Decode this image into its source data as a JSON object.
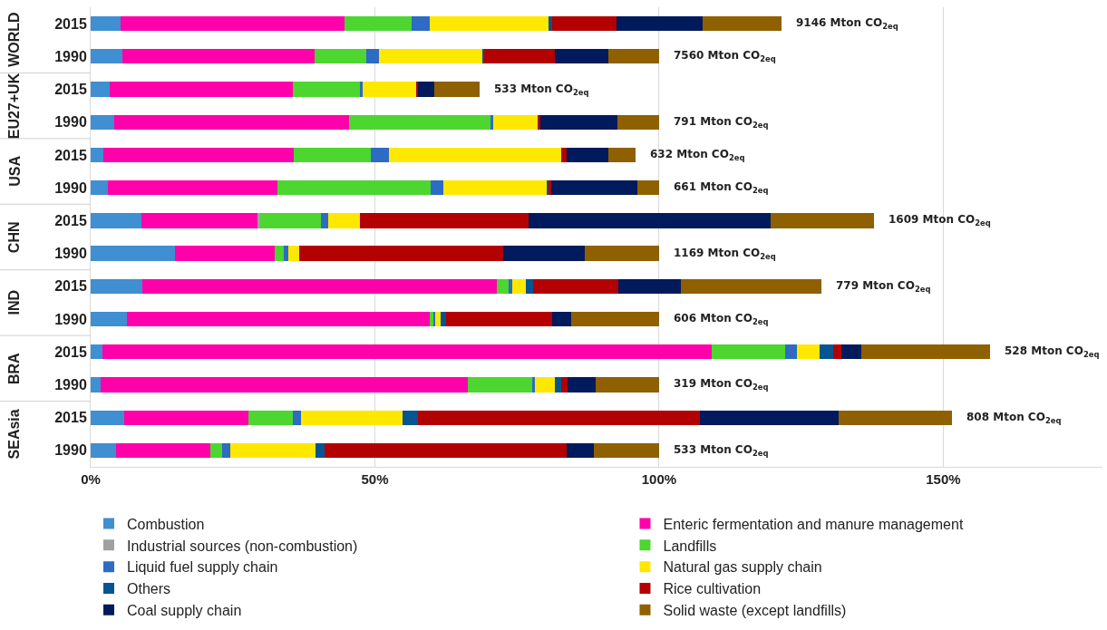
{
  "chart_data": {
    "type": "bar",
    "orientation": "horizontal",
    "stacked": true,
    "categories": [
      "2015",
      "1990",
      "2015",
      "1990",
      "2015",
      "1990",
      "2015",
      "1990",
      "2015",
      "1990",
      "2015",
      "1990",
      "2015",
      "1990"
    ],
    "annotations": [
      "WORLD",
      "EU27+UK",
      "USA",
      "CHN",
      "IND",
      "BRA",
      "SEAsia"
    ],
    "series": [
      {
        "name": "Combustion",
        "color": "#3f8fd2",
        "values": [
          5.2,
          5.6,
          3.4,
          4.1,
          2.2,
          3.0,
          8.9,
          14.9,
          9.1,
          6.4,
          2.1,
          1.7,
          5.9,
          4.4
        ]
      },
      {
        "name": "Enteric fermentation and manure management",
        "color": "#ff00aa",
        "values": [
          39.4,
          33.8,
          32.1,
          41.4,
          33.6,
          29.8,
          20.4,
          17.4,
          62.3,
          53.2,
          107.2,
          64.6,
          21.8,
          16.6
        ]
      },
      {
        "name": "Industrial sources (non-combustion)",
        "color": "#a0a0a0",
        "values": [
          0,
          0,
          0,
          0,
          0,
          0,
          0.5,
          0,
          0,
          0,
          0,
          0,
          0,
          0
        ]
      },
      {
        "name": "Landfills",
        "color": "#4cd62f",
        "values": [
          11.9,
          9.1,
          12.0,
          24.9,
          13.5,
          27.0,
          10.7,
          1.7,
          2.2,
          0.7,
          12.8,
          11.3,
          7.9,
          2.2
        ]
      },
      {
        "name": "Liquid fuel supply chain",
        "color": "#2d6bc4",
        "values": [
          3.2,
          2.2,
          0.3,
          0.4,
          3.2,
          2.2,
          1.3,
          0.8,
          0.6,
          0.3,
          2.2,
          0.6,
          1.4,
          1.3
        ]
      },
      {
        "name": "Natural gas supply chain",
        "color": "#ffe800",
        "values": [
          20.9,
          18.3,
          9.5,
          7.8,
          30.2,
          18.3,
          5.6,
          1.9,
          2.3,
          0.9,
          4.0,
          3.5,
          17.9,
          15.1
        ]
      },
      {
        "name": "Others",
        "color": "#045592",
        "values": [
          0.6,
          0.3,
          0,
          0,
          0,
          0.3,
          0,
          0,
          1.3,
          1.0,
          2.4,
          1.0,
          2.7,
          1.6
        ]
      },
      {
        "name": "Rice cultivation",
        "color": "#b30000",
        "values": [
          11.3,
          12.3,
          0.3,
          0.5,
          1.1,
          0.5,
          29.7,
          35.8,
          15.0,
          18.7,
          1.4,
          1.2,
          49.6,
          42.6
        ]
      },
      {
        "name": "Coal supply chain",
        "color": "#001a5c",
        "values": [
          15.1,
          9.4,
          2.9,
          13.6,
          7.3,
          15.1,
          42.6,
          14.5,
          11.0,
          3.4,
          3.5,
          5.0,
          24.4,
          4.8
        ]
      },
      {
        "name": "Solid waste (except landfills)",
        "color": "#8f6000",
        "values": [
          14.0,
          9.0,
          7.9,
          7.3,
          4.8,
          3.8,
          18.1,
          13.0,
          24.8,
          15.4,
          22.6,
          11.1,
          19.9,
          11.4
        ]
      }
    ],
    "totals": [
      "9146 Mton CO$_{2eq}$",
      "7560 Mton CO$_{2eq}$",
      "533 Mton CO$_{2eq}$",
      "791 Mton CO$_{2eq}$",
      "632 Mton CO$_{2eq}$",
      "661 Mton CO$_{2eq}$",
      "1609 Mton CO$_{2eq}$",
      "1169 Mton CO$_{2eq}$",
      "779 Mton CO$_{2eq}$",
      "606 Mton CO$_{2eq}$",
      "528 Mton CO$_{2eq}$",
      "319 Mton CO$_{2eq}$",
      "808 Mton CO$_{2eq}$",
      "533 Mton CO$_{2eq}$"
    ],
    "xlim": [
      0,
      178
    ],
    "xticks": [
      {
        "value": 0,
        "label": "0%"
      },
      {
        "value": 50,
        "label": "50%"
      },
      {
        "value": 100,
        "label": "100%"
      },
      {
        "value": 150,
        "label": "150%"
      }
    ],
    "grid": "x",
    "legend": "bottom"
  }
}
